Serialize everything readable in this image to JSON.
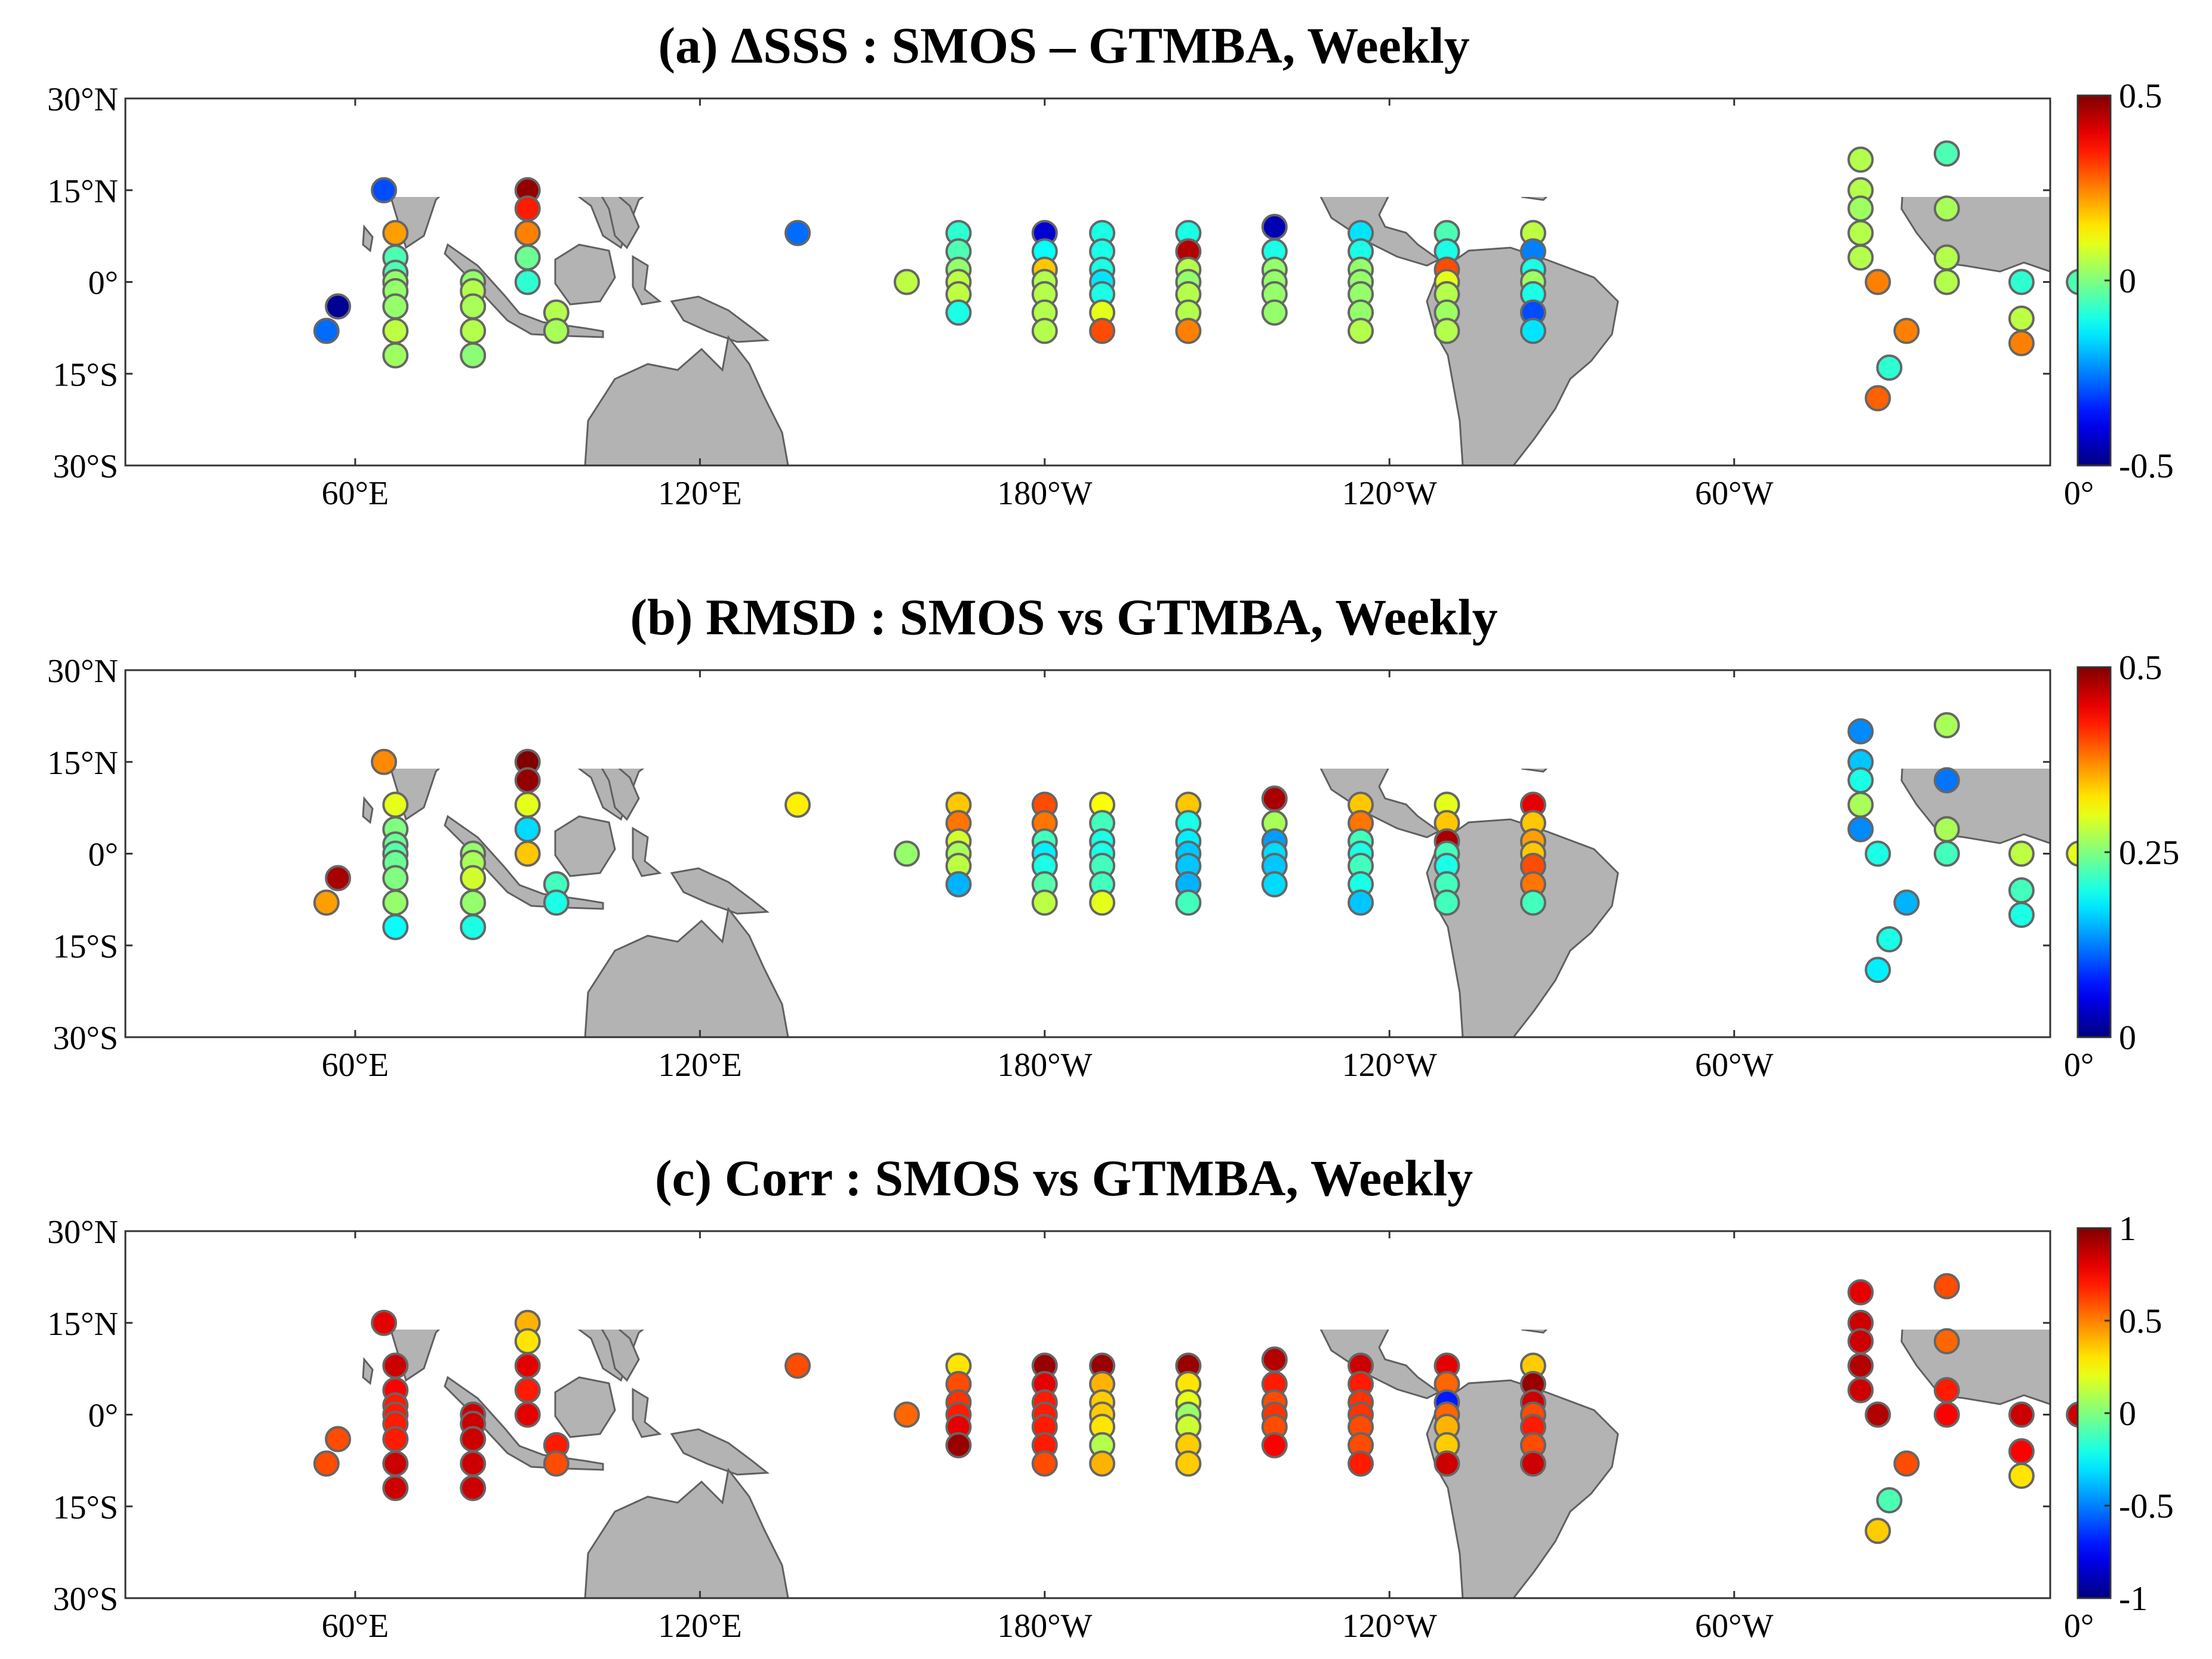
{
  "map_extent": {
    "lon_min": 20,
    "lon_max": 355,
    "lat_min": -30,
    "lat_max": 30
  },
  "lat_ticks": [
    {
      "lat": 30,
      "label": "30°N"
    },
    {
      "lat": 15,
      "label": "15°N"
    },
    {
      "lat": 0,
      "label": "0°"
    },
    {
      "lat": -15,
      "label": "15°S"
    },
    {
      "lat": -30,
      "label": "30°S"
    }
  ],
  "lon_ticks": [
    {
      "lon": 60,
      "label": "60°E"
    },
    {
      "lon": 120,
      "label": "120°E"
    },
    {
      "lon": 180,
      "label": "180°W"
    },
    {
      "lon": 240,
      "label": "120°W"
    },
    {
      "lon": 300,
      "label": "60°W"
    },
    {
      "lon": 360,
      "label": "0°"
    }
  ],
  "colormap": "jet",
  "stations": [
    [
      55,
      -8
    ],
    [
      57,
      -4
    ],
    [
      65,
      15
    ],
    [
      67,
      8
    ],
    [
      67,
      4
    ],
    [
      67,
      1.5
    ],
    [
      67,
      0
    ],
    [
      67,
      -1.5
    ],
    [
      67,
      -4
    ],
    [
      67,
      -8
    ],
    [
      67,
      -12
    ],
    [
      80.5,
      0
    ],
    [
      80.5,
      -1.5
    ],
    [
      80.5,
      -4
    ],
    [
      80.5,
      -8
    ],
    [
      80.5,
      -12
    ],
    [
      90,
      15
    ],
    [
      90,
      12
    ],
    [
      90,
      8
    ],
    [
      90,
      4
    ],
    [
      90,
      0
    ],
    [
      95,
      -5
    ],
    [
      95,
      -8
    ],
    [
      137,
      8
    ],
    [
      156,
      0
    ],
    [
      165,
      8
    ],
    [
      165,
      5
    ],
    [
      165,
      2
    ],
    [
      165,
      0
    ],
    [
      165,
      -2
    ],
    [
      165,
      -5
    ],
    [
      180,
      8
    ],
    [
      180,
      5
    ],
    [
      180,
      2
    ],
    [
      180,
      0
    ],
    [
      180,
      -2
    ],
    [
      180,
      -5
    ],
    [
      180,
      -8
    ],
    [
      190,
      8
    ],
    [
      190,
      5
    ],
    [
      190,
      2
    ],
    [
      190,
      0
    ],
    [
      190,
      -2
    ],
    [
      190,
      -5
    ],
    [
      190,
      -8
    ],
    [
      205,
      8
    ],
    [
      205,
      5
    ],
    [
      205,
      2
    ],
    [
      205,
      0
    ],
    [
      205,
      -2
    ],
    [
      205,
      -5
    ],
    [
      205,
      -8
    ],
    [
      220,
      9
    ],
    [
      220,
      5
    ],
    [
      220,
      2
    ],
    [
      220,
      0
    ],
    [
      220,
      -2
    ],
    [
      220,
      -5
    ],
    [
      235,
      8
    ],
    [
      235,
      5
    ],
    [
      235,
      2
    ],
    [
      235,
      0
    ],
    [
      235,
      -2
    ],
    [
      235,
      -5
    ],
    [
      235,
      -8
    ],
    [
      250,
      8
    ],
    [
      250,
      5
    ],
    [
      250,
      2
    ],
    [
      250,
      0
    ],
    [
      250,
      -2
    ],
    [
      250,
      -5
    ],
    [
      250,
      -8
    ],
    [
      265,
      8
    ],
    [
      265,
      5
    ],
    [
      265,
      2
    ],
    [
      265,
      0
    ],
    [
      265,
      -2
    ],
    [
      265,
      -5
    ],
    [
      265,
      -8
    ],
    [
      322,
      20
    ],
    [
      322,
      15
    ],
    [
      322,
      12
    ],
    [
      322,
      8
    ],
    [
      322,
      4
    ],
    [
      325,
      0
    ],
    [
      330,
      -8
    ],
    [
      327,
      -14
    ],
    [
      325,
      -19
    ],
    [
      337,
      21
    ],
    [
      337,
      12
    ],
    [
      337,
      4
    ],
    [
      337,
      0
    ],
    [
      350,
      0
    ],
    [
      350,
      -6
    ],
    [
      350,
      -10
    ],
    [
      360,
      0
    ]
  ],
  "chart_data": [
    {
      "type": "scatter",
      "panel": "a",
      "title": "(a) ΔSSS : SMOS – GTMBA,  Weekly",
      "colorbar": {
        "min": -0.5,
        "max": 0.5,
        "tick_labels": [
          "0.5",
          "0",
          "-0.5"
        ]
      },
      "values": [
        -0.27,
        -0.48,
        -0.3,
        0.22,
        -0.05,
        -0.05,
        0.02,
        0.02,
        0.02,
        0.06,
        0.03,
        0.02,
        0.05,
        0.04,
        0.05,
        0.01,
        0.48,
        0.35,
        0.25,
        -0.02,
        -0.08,
        0.05,
        0.04,
        -0.27,
        0.06,
        -0.08,
        -0.05,
        0.02,
        0.06,
        0.06,
        -0.1,
        -0.42,
        -0.12,
        0.18,
        0.05,
        0.05,
        0.05,
        0.05,
        -0.1,
        -0.1,
        -0.1,
        -0.15,
        -0.1,
        0.1,
        0.3,
        -0.1,
        0.45,
        0.05,
        0.02,
        0.05,
        0.05,
        0.25,
        -0.45,
        -0.1,
        0.02,
        0.02,
        0.02,
        0.02,
        -0.15,
        -0.1,
        0.02,
        0.02,
        0.02,
        0.02,
        0.05,
        -0.05,
        -0.1,
        0.3,
        0.1,
        0.05,
        0.03,
        0.05,
        0.06,
        -0.25,
        -0.1,
        0.03,
        -0.1,
        -0.3,
        -0.15,
        0.05,
        0.05,
        0.03,
        0.05,
        0.05,
        0.25,
        0.25,
        -0.08,
        0.28,
        -0.05,
        0.04,
        0.05,
        0.05,
        -0.08,
        0.06,
        0.25,
        -0.05
      ]
    },
    {
      "type": "scatter",
      "panel": "b",
      "title": "(b) RMSD : SMOS vs  GTMBA, Weekly",
      "colorbar": {
        "min": 0,
        "max": 0.5,
        "tick_labels": [
          "0.5",
          "0.25",
          "0"
        ]
      },
      "values": [
        0.36,
        0.48,
        0.37,
        0.3,
        0.25,
        0.24,
        0.23,
        0.24,
        0.25,
        0.26,
        0.19,
        0.26,
        0.27,
        0.29,
        0.26,
        0.2,
        0.5,
        0.49,
        0.3,
        0.17,
        0.34,
        0.22,
        0.2,
        0.32,
        0.26,
        0.34,
        0.38,
        0.29,
        0.27,
        0.28,
        0.15,
        0.4,
        0.38,
        0.22,
        0.18,
        0.2,
        0.23,
        0.28,
        0.31,
        0.22,
        0.2,
        0.2,
        0.22,
        0.22,
        0.3,
        0.34,
        0.2,
        0.18,
        0.16,
        0.16,
        0.15,
        0.22,
        0.48,
        0.27,
        0.14,
        0.17,
        0.16,
        0.17,
        0.34,
        0.38,
        0.22,
        0.2,
        0.22,
        0.2,
        0.16,
        0.3,
        0.34,
        0.48,
        0.22,
        0.2,
        0.22,
        0.22,
        0.45,
        0.34,
        0.36,
        0.34,
        0.4,
        0.38,
        0.22,
        0.13,
        0.16,
        0.2,
        0.27,
        0.13,
        0.2,
        0.15,
        0.2,
        0.18,
        0.27,
        0.12,
        0.27,
        0.22,
        0.28,
        0.22,
        0.2,
        0.3
      ]
    },
    {
      "type": "scatter",
      "panel": "c",
      "title": "(c) Corr : SMOS vs  GTMBA, Weekly",
      "colorbar": {
        "min": -1,
        "max": 1,
        "tick_labels": [
          "1",
          "0.5",
          "0",
          "-0.5",
          "-1"
        ]
      },
      "values": [
        0.6,
        0.6,
        0.8,
        0.85,
        0.75,
        0.7,
        0.7,
        0.7,
        0.7,
        0.85,
        0.85,
        0.85,
        0.85,
        0.85,
        0.85,
        0.85,
        0.4,
        0.3,
        0.8,
        0.7,
        0.8,
        0.7,
        0.6,
        0.6,
        0.55,
        0.3,
        0.6,
        0.65,
        0.7,
        0.8,
        0.95,
        0.95,
        0.8,
        0.7,
        0.7,
        0.7,
        0.7,
        0.6,
        0.95,
        0.4,
        0.35,
        0.35,
        0.3,
        0.1,
        0.4,
        0.95,
        0.3,
        0.2,
        0.05,
        0.15,
        0.35,
        0.35,
        0.9,
        0.7,
        0.6,
        0.65,
        0.6,
        0.75,
        0.85,
        0.7,
        0.65,
        0.65,
        0.6,
        0.6,
        0.7,
        0.8,
        0.55,
        -0.7,
        0.55,
        0.4,
        0.35,
        0.85,
        0.35,
        0.95,
        0.85,
        0.6,
        0.7,
        0.6,
        0.85,
        0.8,
        0.85,
        0.85,
        0.9,
        0.85,
        0.9,
        0.6,
        -0.1,
        0.35,
        0.6,
        0.55,
        0.7,
        0.75,
        0.85,
        0.75,
        0.3,
        0.85
      ]
    }
  ]
}
